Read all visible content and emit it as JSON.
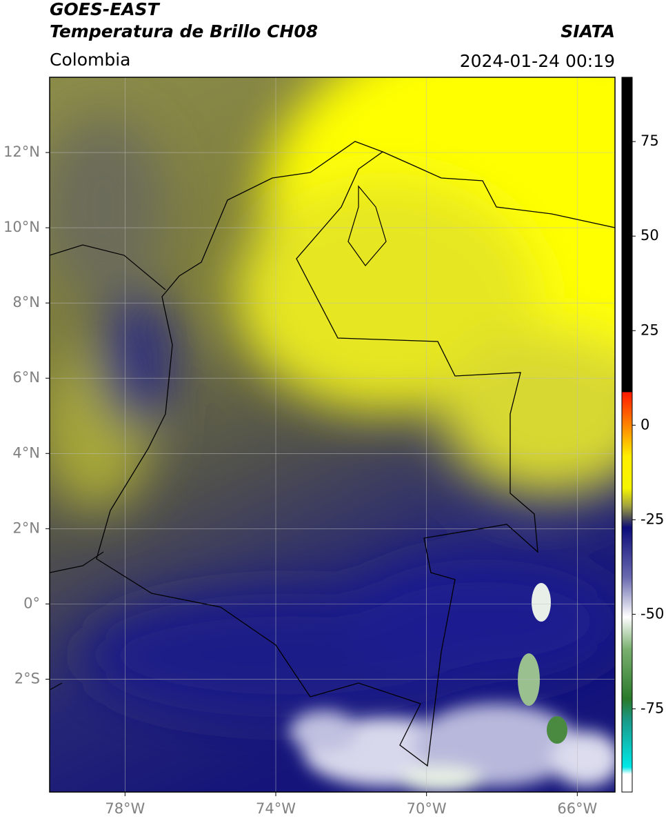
{
  "header": {
    "satellite": "GOES-EAST",
    "product": "Temperatura de Brillo CH08",
    "source": "SIATA",
    "region": "Colombia",
    "datetime": "2024-01-24 00:19"
  },
  "map": {
    "type": "map",
    "xlim": [
      -80,
      -65
    ],
    "ylim": [
      -5,
      14
    ],
    "xticks": [
      {
        "value": -78,
        "label": "78°W"
      },
      {
        "value": -74,
        "label": "74°W"
      },
      {
        "value": -70,
        "label": "70°W"
      },
      {
        "value": -66,
        "label": "66°W"
      }
    ],
    "yticks": [
      {
        "value": 12,
        "label": "12°N"
      },
      {
        "value": 10,
        "label": "10°N"
      },
      {
        "value": 8,
        "label": "8°N"
      },
      {
        "value": 6,
        "label": "6°N"
      },
      {
        "value": 4,
        "label": "4°N"
      },
      {
        "value": 2,
        "label": "2°N"
      },
      {
        "value": 0,
        "label": "0°"
      },
      {
        "value": -2,
        "label": "2°S"
      }
    ],
    "grid": true
  },
  "colorbar": {
    "lim": [
      -97,
      92
    ],
    "ticks": [
      75,
      50,
      25,
      0,
      -25,
      -50,
      -75
    ]
  }
}
